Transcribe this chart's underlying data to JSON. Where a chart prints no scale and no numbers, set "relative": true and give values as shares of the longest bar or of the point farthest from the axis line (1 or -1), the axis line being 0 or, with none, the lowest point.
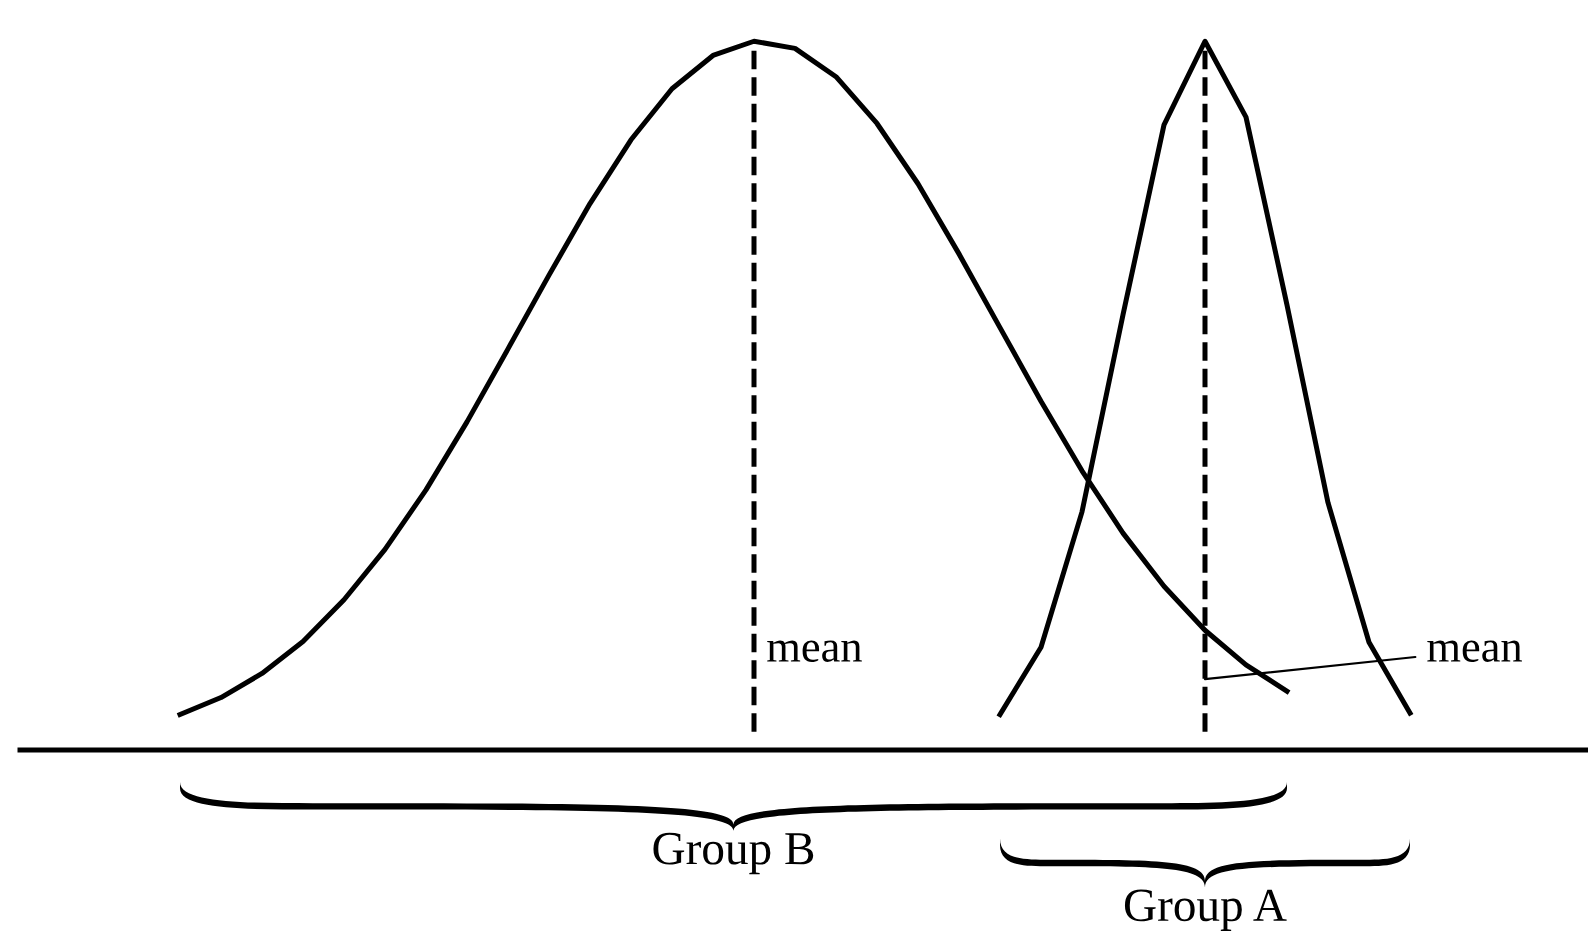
{
  "chart_data": {
    "type": "line",
    "relative": true,
    "grid": false,
    "legend": false,
    "marker": "none",
    "line_style": "solid",
    "categories": [
      null,
      null,
      null,
      null,
      null,
      null,
      null,
      null,
      null,
      null,
      null,
      null,
      null,
      null,
      null,
      null,
      null,
      null,
      null,
      null,
      null,
      null,
      null,
      null,
      null,
      null,
      null,
      null,
      null,
      null,
      null
    ],
    "series": [
      {
        "color": "#000000",
        "values": [
          0.05,
          0.074,
          0.108,
          0.153,
          0.212,
          0.283,
          0.367,
          0.463,
          0.566,
          0.67,
          0.771,
          0.861,
          0.933,
          0.98,
          1.0,
          0.99,
          0.95,
          0.884,
          0.799,
          0.7,
          0.596,
          0.492,
          0.394,
          0.306,
          0.231,
          0.169,
          0.12,
          0.083,
          null,
          null,
          null
        ]
      },
      {
        "color": "#000000",
        "values": [
          null,
          null,
          null,
          null,
          null,
          null,
          null,
          null,
          null,
          null,
          null,
          null,
          null,
          null,
          null,
          null,
          null,
          null,
          null,
          null,
          0.05,
          0.145,
          0.336,
          0.614,
          0.882,
          1.0,
          0.893,
          0.628,
          0.349,
          0.152,
          0.052
        ]
      }
    ],
    "annotations": [
      "mean",
      "mean",
      "Group B",
      "Group A"
    ]
  }
}
